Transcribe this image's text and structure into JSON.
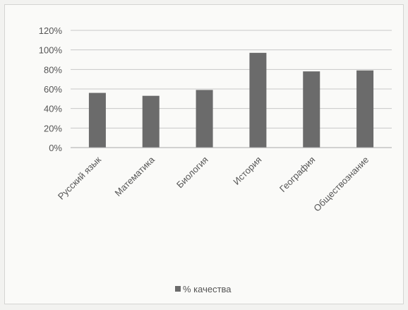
{
  "chart_data": {
    "type": "bar",
    "categories": [
      "Русский язык",
      "Математика",
      "Биология",
      "История",
      "География",
      "Обществознание"
    ],
    "series": [
      {
        "name": "% качества",
        "values": [
          56,
          53,
          59,
          97,
          78,
          79
        ]
      }
    ],
    "yticks": [
      "0%",
      "20%",
      "40%",
      "60%",
      "80%",
      "100%",
      "120%"
    ],
    "ylim": [
      0,
      120
    ],
    "grid": true,
    "legend_position": "bottom",
    "colors": {
      "bar": "#6b6b6b",
      "grid": "#c8c8c8",
      "text": "#555555"
    }
  }
}
